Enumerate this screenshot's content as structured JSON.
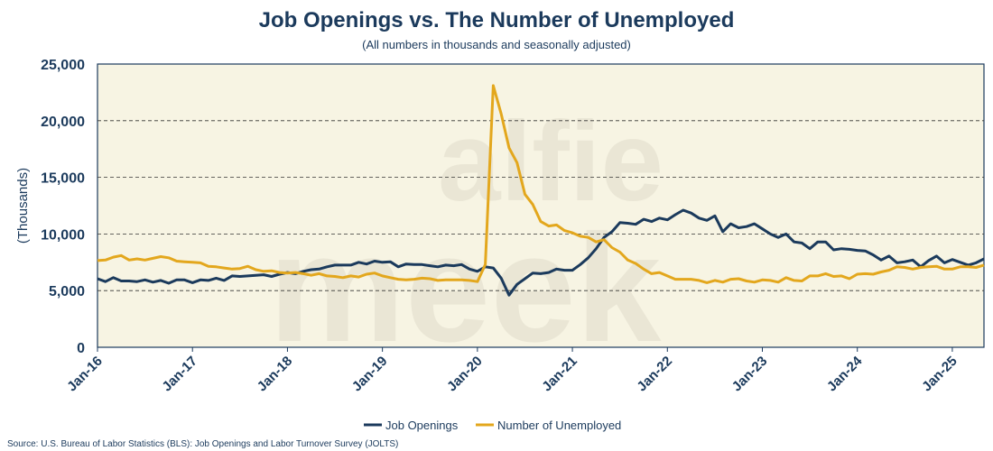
{
  "chart_data": {
    "type": "line",
    "title": "Job Openings vs. The Number of Unemployed",
    "subtitle": "(All numbers in thousands and seasonally adjusted)",
    "xlabel": "",
    "ylabel": "(Thousands)",
    "ylim": [
      0,
      25000
    ],
    "yticks": [
      0,
      5000,
      10000,
      15000,
      20000,
      25000
    ],
    "ytick_labels": [
      "0",
      "5,000",
      "10,000",
      "15,000",
      "20,000",
      "25,000"
    ],
    "start": "Jan-16",
    "xtick_labels": [
      "Jan-16",
      "Jan-17",
      "Jan-18",
      "Jan-19",
      "Jan-20",
      "Jan-21",
      "Jan-22",
      "Jan-23",
      "Jan-24",
      "Jan-25"
    ],
    "grid": "horizontal dashed",
    "legend": "bottom",
    "series": [
      {
        "name": "Job Openings",
        "color": "#1b3a5c",
        "values": [
          6050,
          5800,
          6150,
          5850,
          5850,
          5800,
          5950,
          5750,
          5900,
          5650,
          5950,
          5950,
          5700,
          5950,
          5900,
          6100,
          5900,
          6300,
          6250,
          6300,
          6350,
          6400,
          6250,
          6450,
          6600,
          6500,
          6700,
          6850,
          6900,
          7100,
          7250,
          7250,
          7250,
          7500,
          7350,
          7600,
          7500,
          7550,
          7100,
          7350,
          7300,
          7300,
          7200,
          7100,
          7250,
          7200,
          7300,
          6900,
          6700,
          7100,
          7000,
          6100,
          4600,
          5550,
          6050,
          6550,
          6500,
          6600,
          6900,
          6800,
          6800,
          7300,
          7900,
          8700,
          9700,
          10200,
          11000,
          10950,
          10850,
          11300,
          11100,
          11400,
          11250,
          11700,
          12100,
          11850,
          11400,
          11200,
          11600,
          10200,
          10900,
          10550,
          10650,
          10900,
          10450,
          10000,
          9700,
          10000,
          9300,
          9200,
          8700,
          9300,
          9300,
          8600,
          8700,
          8650,
          8550,
          8500,
          8150,
          7700,
          8050,
          7450,
          7550,
          7700,
          7100,
          7650,
          8050,
          7450,
          7750,
          7500,
          7250,
          7450,
          7800
        ]
      },
      {
        "name": "Number of Unemployed",
        "color": "#e3a71d",
        "values": [
          7650,
          7700,
          7950,
          8100,
          7700,
          7800,
          7700,
          7850,
          8000,
          7900,
          7600,
          7550,
          7500,
          7450,
          7150,
          7100,
          7000,
          6900,
          6950,
          7150,
          6850,
          6700,
          6750,
          6600,
          6550,
          6600,
          6500,
          6350,
          6500,
          6300,
          6250,
          6150,
          6300,
          6200,
          6450,
          6550,
          6300,
          6150,
          6000,
          5950,
          6000,
          6100,
          6050,
          5900,
          5950,
          5950,
          5950,
          5900,
          5800,
          7300,
          23100,
          20600,
          17600,
          16300,
          13500,
          12600,
          11100,
          10700,
          10800,
          10300,
          10100,
          9800,
          9700,
          9300,
          9500,
          8800,
          8400,
          7700,
          7400,
          6900,
          6500,
          6600,
          6300,
          6000,
          6000,
          6000,
          5900,
          5700,
          5900,
          5750,
          6000,
          6050,
          5850,
          5750,
          5950,
          5900,
          5750,
          6150,
          5900,
          5850,
          6300,
          6300,
          6500,
          6250,
          6300,
          6050,
          6450,
          6500,
          6450,
          6650,
          6800,
          7100,
          7050,
          6900,
          7050,
          7100,
          7150,
          6900,
          6900,
          7100,
          7100,
          7050,
          7250
        ]
      }
    ]
  },
  "watermark": {
    "line1": "alfie",
    "line2": "meek"
  },
  "source": "Source: U.S. Bureau of Labor Statistics (BLS): Job Openings and Labor Turnover Survey (JOLTS)"
}
